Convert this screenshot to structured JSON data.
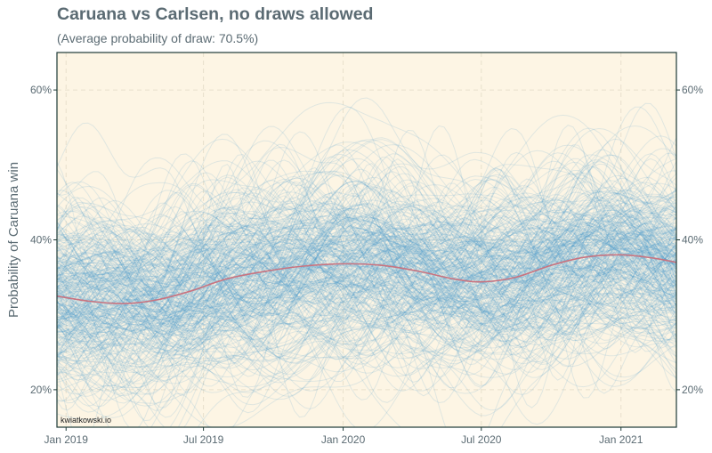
{
  "chart_data": {
    "type": "line",
    "title": "Caruana vs Carlsen, no draws allowed",
    "subtitle": "(Average probability of draw: 70.5%)",
    "xlabel": "",
    "ylabel": "Probability of Caruana win",
    "credit": "kwiatkowski.io",
    "x_range": [
      "2018-12-20",
      "2021-03-15"
    ],
    "ylim": [
      0.15,
      0.65
    ],
    "grid": true,
    "x_ticks": [
      {
        "date": "2019-01-01",
        "label": "Jan 2019"
      },
      {
        "date": "2019-07-01",
        "label": "Jul 2019"
      },
      {
        "date": "2020-01-01",
        "label": "Jan 2020"
      },
      {
        "date": "2020-07-01",
        "label": "Jul 2020"
      },
      {
        "date": "2021-01-01",
        "label": "Jan 2021"
      }
    ],
    "y_ticks": [
      {
        "value": 0.2,
        "label": "20%"
      },
      {
        "value": 0.4,
        "label": "40%"
      },
      {
        "value": 0.6,
        "label": "60%"
      }
    ],
    "colors": {
      "background": "#fdf5e4",
      "border": "#1d3a36",
      "draws": "#4a9bd0",
      "mean": "#c9737f",
      "grid": "#e8e0cc"
    },
    "mean_line": {
      "name": "",
      "points": [
        {
          "x": "2018-12-20",
          "y": 0.325
        },
        {
          "x": "2019-02-01",
          "y": 0.318
        },
        {
          "x": "2019-03-20",
          "y": 0.315
        },
        {
          "x": "2019-05-01",
          "y": 0.32
        },
        {
          "x": "2019-06-15",
          "y": 0.332
        },
        {
          "x": "2019-08-01",
          "y": 0.348
        },
        {
          "x": "2019-09-20",
          "y": 0.358
        },
        {
          "x": "2019-11-10",
          "y": 0.365
        },
        {
          "x": "2020-01-01",
          "y": 0.368
        },
        {
          "x": "2020-02-20",
          "y": 0.366
        },
        {
          "x": "2020-04-10",
          "y": 0.358
        },
        {
          "x": "2020-05-25",
          "y": 0.348
        },
        {
          "x": "2020-07-01",
          "y": 0.344
        },
        {
          "x": "2020-08-15",
          "y": 0.35
        },
        {
          "x": "2020-10-01",
          "y": 0.366
        },
        {
          "x": "2020-11-15",
          "y": 0.377
        },
        {
          "x": "2021-01-01",
          "y": 0.38
        },
        {
          "x": "2021-02-10",
          "y": 0.376
        },
        {
          "x": "2021-03-15",
          "y": 0.37
        }
      ]
    },
    "posterior_draws": {
      "count": 320,
      "y_mean": 0.355,
      "y_sd": 0.085
    }
  }
}
